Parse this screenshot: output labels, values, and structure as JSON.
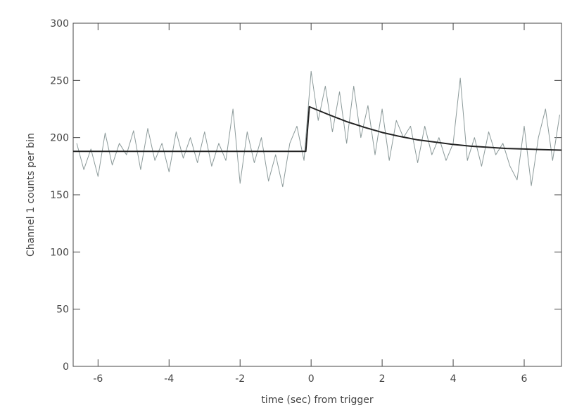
{
  "chart_data": {
    "type": "line",
    "xlabel": "time (sec) from trigger",
    "ylabel": "Channel 1 counts per bin",
    "xlim": [
      -6.7,
      7.05
    ],
    "ylim": [
      0,
      300
    ],
    "xticks": [
      -6,
      -4,
      -2,
      0,
      2,
      4,
      6
    ],
    "yticks": [
      0,
      50,
      100,
      150,
      200,
      250,
      300
    ],
    "series": [
      {
        "color": "#8c9a9a",
        "width": 1,
        "x": [
          -6.6,
          -6.4,
          -6.2,
          -6.0,
          -5.8,
          -5.6,
          -5.4,
          -5.2,
          -5.0,
          -4.8,
          -4.6,
          -4.4,
          -4.2,
          -4.0,
          -3.8,
          -3.6,
          -3.4,
          -3.2,
          -3.0,
          -2.8,
          -2.6,
          -2.4,
          -2.2,
          -2.0,
          -1.8,
          -1.6,
          -1.4,
          -1.2,
          -1.0,
          -0.8,
          -0.6,
          -0.4,
          -0.2,
          0.0,
          0.2,
          0.4,
          0.6,
          0.8,
          1.0,
          1.2,
          1.4,
          1.6,
          1.8,
          2.0,
          2.2,
          2.4,
          2.6,
          2.8,
          3.0,
          3.2,
          3.4,
          3.6,
          3.8,
          4.0,
          4.2,
          4.4,
          4.6,
          4.8,
          5.0,
          5.2,
          5.4,
          5.6,
          5.8,
          6.0,
          6.2,
          6.4,
          6.6,
          6.8,
          7.0
        ],
        "values": [
          195,
          172,
          190,
          166,
          204,
          176,
          195,
          185,
          206,
          172,
          208,
          180,
          195,
          170,
          205,
          182,
          200,
          178,
          205,
          175,
          195,
          180,
          225,
          160,
          205,
          178,
          200,
          162,
          185,
          157,
          195,
          210,
          180,
          258,
          215,
          245,
          205,
          240,
          195,
          245,
          200,
          228,
          185,
          225,
          180,
          215,
          200,
          210,
          178,
          210,
          185,
          200,
          180,
          195,
          252,
          180,
          200,
          175,
          205,
          185,
          195,
          175,
          163,
          210,
          158,
          200,
          225,
          180,
          220
        ]
      },
      {
        "color": "#222222",
        "width": 2,
        "x": [
          -6.7,
          -0.15,
          -0.05,
          0.5,
          1,
          1.5,
          2,
          2.5,
          3,
          3.5,
          4,
          4.5,
          5,
          5.5,
          6,
          6.5,
          7.05
        ],
        "values": [
          188,
          188,
          227,
          220,
          214,
          209,
          204.5,
          201,
          198,
          196,
          194,
          192.5,
          191.5,
          190.5,
          190,
          189.5,
          189
        ]
      }
    ]
  }
}
